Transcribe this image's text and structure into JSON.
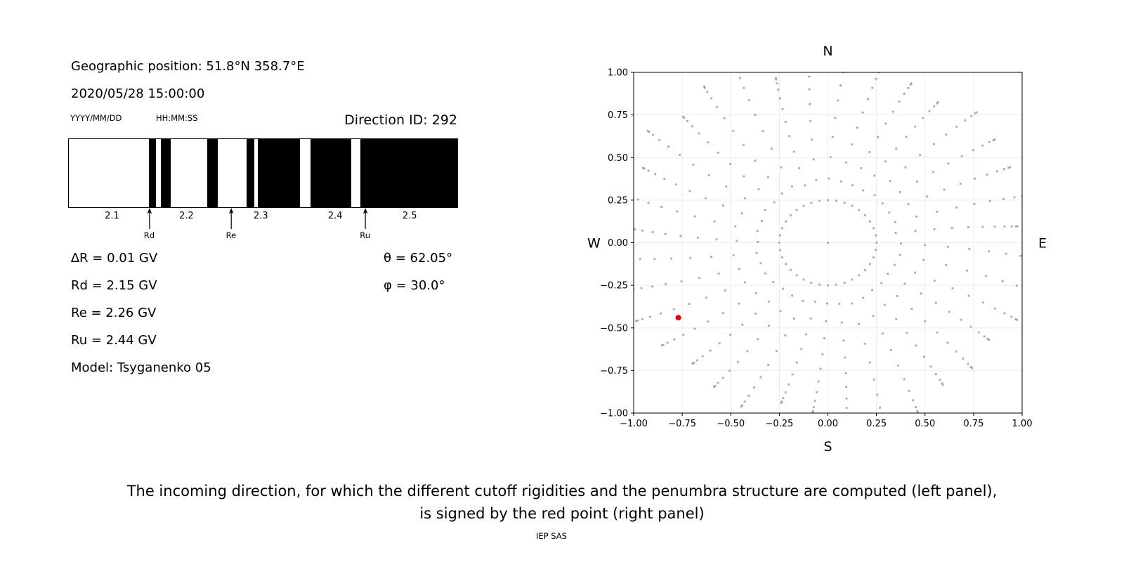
{
  "left_panel": {
    "geo_position": "Geographic position: 51.8°N 358.7°E",
    "datetime": "2020/05/28 15:00:00",
    "date_format_label": "YYYY/MM/DD",
    "time_format_label": "HH:MM:SS",
    "direction_id_label": "Direction ID: 292",
    "params": [
      "∆R = 0.01 GV",
      "Rd = 2.15 GV",
      "Re = 2.26 GV",
      "Ru = 2.44 GV",
      "Model: Tsyganenko 05"
    ],
    "theta_label": "θ = 62.05°",
    "phi_label": "φ = 30.0°"
  },
  "chart_data": [
    {
      "type": "bar",
      "name": "penumbra-structure",
      "description": "Penumbra barcode: black bands mark forbidden rigidity intervals (GV)",
      "xlim": [
        2.042,
        2.564
      ],
      "xticks": [
        2.1,
        2.2,
        2.3,
        2.4,
        2.5
      ],
      "forbidden_bands_gv": [
        [
          2.15,
          2.159
        ],
        [
          2.166,
          2.179
        ],
        [
          2.228,
          2.242
        ],
        [
          2.281,
          2.291
        ],
        [
          2.296,
          2.353
        ],
        [
          2.367,
          2.421
        ],
        [
          2.434,
          2.564
        ]
      ],
      "cutoff_markers": [
        {
          "label": "Rd",
          "value_gv": 2.15
        },
        {
          "label": "Re",
          "value_gv": 2.26
        },
        {
          "label": "Ru",
          "value_gv": 2.44
        }
      ],
      "band_color": "#000000",
      "background": "#ffffff"
    },
    {
      "type": "scatter",
      "name": "incoming-directions",
      "description": "Grid of incoming directions (gray dots, radial spokes every 10 deg); red point marks selected direction",
      "xlim": [
        -1,
        1
      ],
      "ylim": [
        -1,
        1
      ],
      "xticks": [
        -1,
        -0.75,
        -0.5,
        -0.25,
        0,
        0.25,
        0.5,
        0.75,
        1
      ],
      "yticks": [
        -1,
        -0.75,
        -0.5,
        -0.25,
        0,
        0.25,
        0.5,
        0.75,
        1
      ],
      "compass": {
        "top": "N",
        "bottom": "S",
        "left": "W",
        "right": "E"
      },
      "spokes": {
        "count": 36,
        "dots_per_spoke": 12,
        "inner_radius": 0.25,
        "outer_radius_min": 0.97,
        "outer_radius_max": 1.15,
        "curvature_deg": -6
      },
      "center_dot": true,
      "red_point": {
        "x": -0.77,
        "y": -0.44
      },
      "colors": {
        "dots": "#969696",
        "red": "#e8000b"
      },
      "grid": true
    }
  ],
  "caption": {
    "line1": "The incoming direction, for which the different cutoff rigidities and the penumbra structure are computed (left panel),",
    "line2": "is signed by the red point (right panel)",
    "credit": "IEP SAS"
  }
}
